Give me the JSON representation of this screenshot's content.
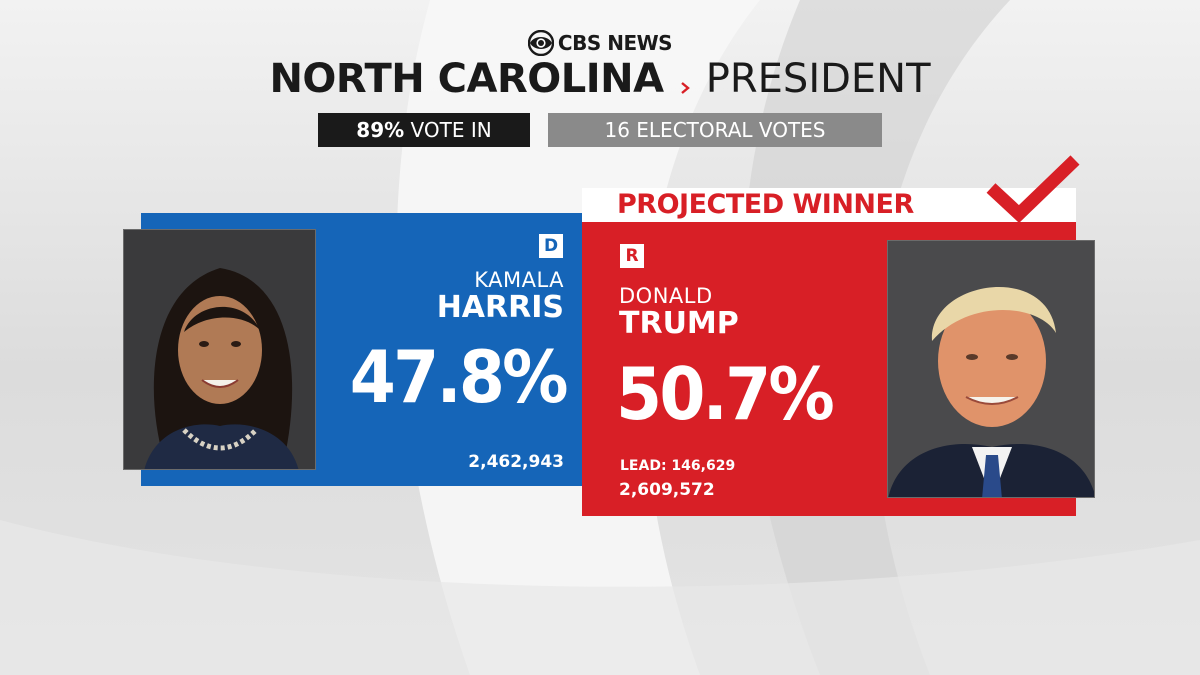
{
  "network": {
    "logo": "CBS NEWS"
  },
  "race": {
    "state": "NORTH CAROLINA",
    "office": "PRESIDENT"
  },
  "status": {
    "vote_in_pct": "89%",
    "vote_in_label": "VOTE IN",
    "electoral_votes": "16 ELECTORAL VOTES"
  },
  "projection": {
    "label": "PROJECTED WINNER",
    "icon": "checkmark-icon"
  },
  "candidates": [
    {
      "party": "D",
      "first_name": "KAMALA",
      "last_name": "HARRIS",
      "vote_pct": "47.8%",
      "votes": "2,462,943",
      "color": "#1565b8"
    },
    {
      "party": "R",
      "first_name": "DONALD",
      "last_name": "TRUMP",
      "vote_pct": "50.7%",
      "votes": "2,609,572",
      "lead": "LEAD: 146,629",
      "color": "#d81f26",
      "winner": true
    }
  ]
}
